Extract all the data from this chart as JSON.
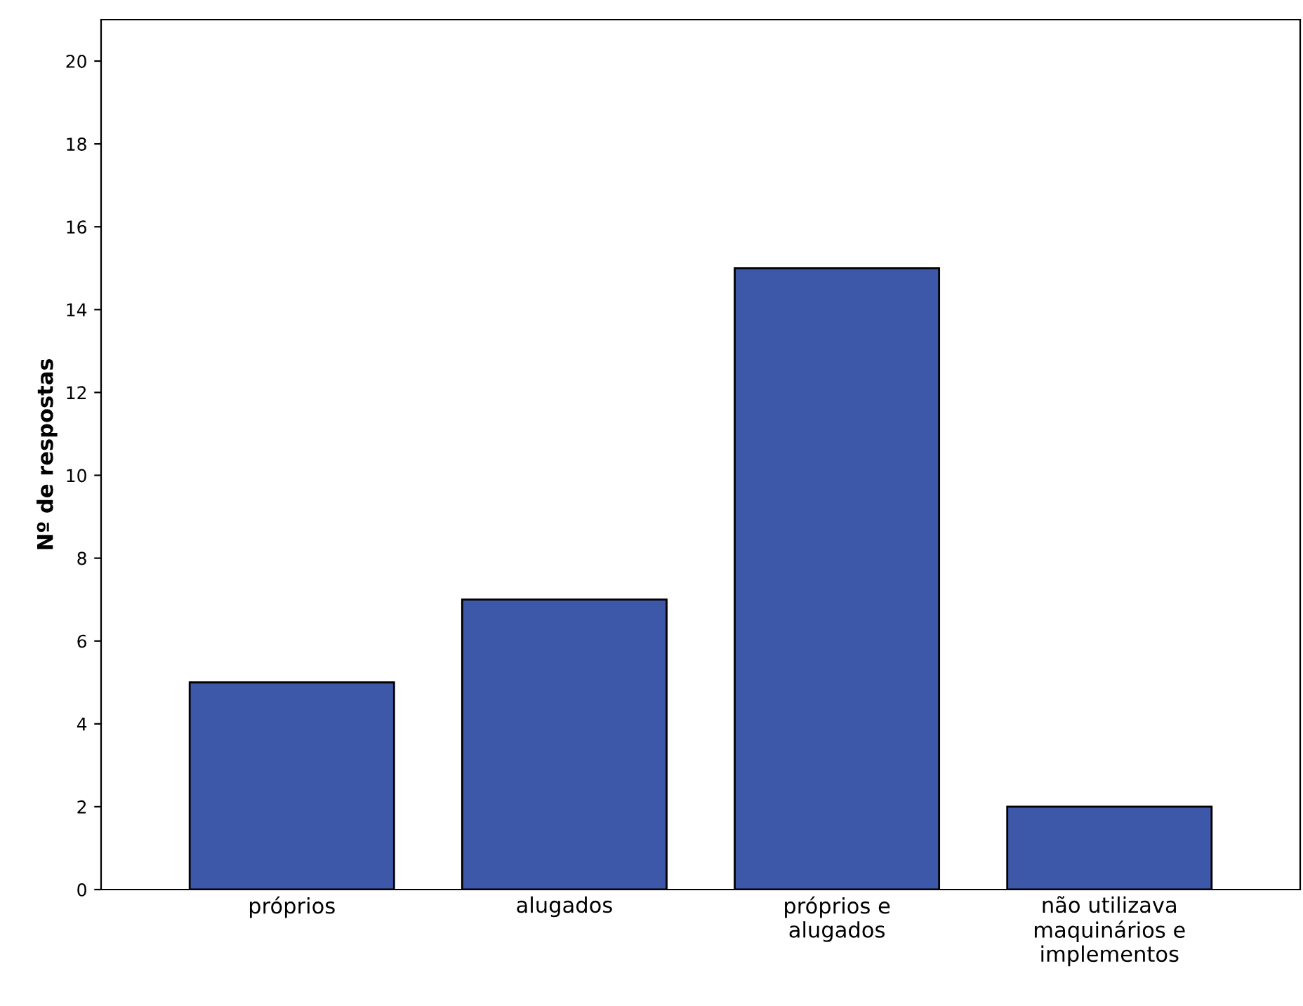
{
  "chart_data": {
    "type": "bar",
    "ylabel": "Nº de respostas",
    "categories": [
      "próprios",
      "alugados",
      "próprios e\nalugados",
      "não utilizava\nmaquinários e\nimplementos"
    ],
    "values": [
      5,
      7,
      15,
      2
    ],
    "color": "#3d58a9",
    "ylim": [
      0,
      21
    ],
    "yticks": [
      0,
      2,
      4,
      6,
      8,
      10,
      12,
      14,
      16,
      18,
      20
    ],
    "grid": false
  }
}
